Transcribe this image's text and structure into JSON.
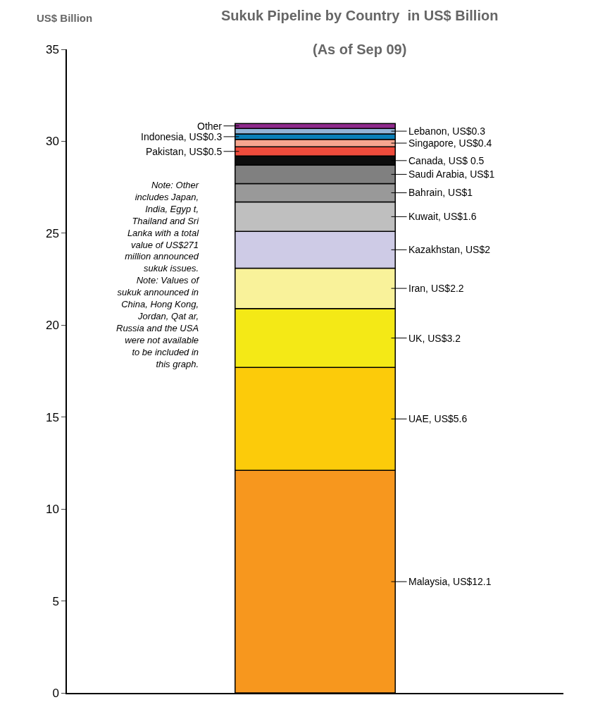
{
  "chart_data": {
    "type": "bar",
    "stacked": true,
    "title": "Sukuk Pipeline by Country  in US$ Billion",
    "subtitle": "(As of Sep 09)",
    "ylabel": "US$ Billion",
    "categories": [
      null
    ],
    "ylim": [
      0,
      35
    ],
    "yticks": [
      0,
      5,
      10,
      15,
      20,
      25,
      30,
      35
    ],
    "tick_labels": "y",
    "legend": "right",
    "series": [
      {
        "name": "Malaysia, US$12.1",
        "color": "#f7971e",
        "values": [
          12.1
        ]
      },
      {
        "name": "UAE, US$5.6",
        "color": "#fccb0a",
        "values": [
          5.6
        ]
      },
      {
        "name": "UK, US$3.2",
        "color": "#f4e916",
        "values": [
          3.2
        ]
      },
      {
        "name": "Iran, US$2.2",
        "color": "#f9f29a",
        "values": [
          2.2
        ]
      },
      {
        "name": "Kazakhstan, US$2",
        "color": "#cecbe6",
        "values": [
          2
        ]
      },
      {
        "name": "Kuwait, US$1.6",
        "color": "#bfbfbf",
        "values": [
          1.6
        ]
      },
      {
        "name": "Bahrain, US$1",
        "color": "#999999",
        "values": [
          1
        ]
      },
      {
        "name": "Saudi Arabia, US$1",
        "color": "#808080",
        "values": [
          1
        ]
      },
      {
        "name": "Canada, US$ 0.5",
        "color": "#0d0d0d",
        "values": [
          0.5
        ]
      },
      {
        "name": "Pakistan, US$0.5",
        "color": "#ef4c3c",
        "values": [
          0.5
        ]
      },
      {
        "name": "Singapore, US$0.4",
        "color": "#f7a68f",
        "values": [
          0.4
        ]
      },
      {
        "name": "Indonesia, US$0.3",
        "color": "#0a7fb8",
        "values": [
          0.3
        ]
      },
      {
        "name": "Lebanon, US$0.3",
        "color": "#92b4d6",
        "values": [
          0.3
        ]
      },
      {
        "name": "Other",
        "color": "#8e2a8c",
        "values": [
          0.27
        ]
      }
    ],
    "annotations": [
      "Note: Other includes Japan, India, Egyp t, Thailand and Sri Lanka with a total value of US$271 million announced sukuk issues. Note: Values of sukuk announced in China, Hong Kong, Jordan, Qat ar, Russia and the USA were not available to be included in this graph."
    ]
  }
}
